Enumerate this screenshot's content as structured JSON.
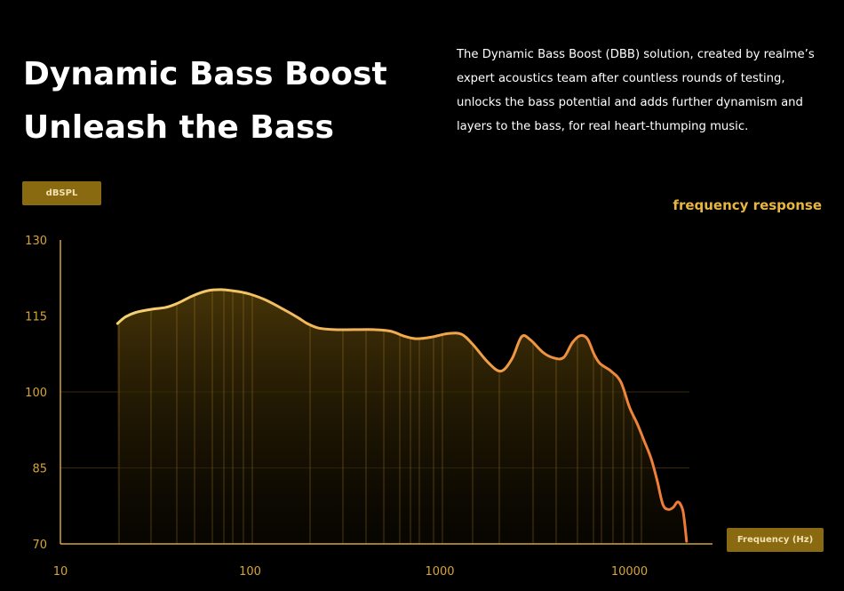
{
  "header": {
    "title_line1": "Dynamic Bass Boost",
    "title_line2": "Unleash the Bass",
    "description": "The Dynamic Bass Boost (DBB) solution, created by realme’s expert acoustics team after countless rounds of testing, unlocks the bass potential and adds further dynamism and layers to the bass, for real heart-thumping music."
  },
  "chart_data": {
    "type": "line",
    "title": "frequency response",
    "ylabel": "dBSPL",
    "xlabel": "Frequency (Hz)",
    "x_scale": "log",
    "xlim": [
      10,
      25000
    ],
    "ylim": [
      70,
      130
    ],
    "x_ticks": [
      10,
      100,
      1000,
      10000
    ],
    "x_tick_labels": [
      "10",
      "100",
      "1000",
      "10000"
    ],
    "y_ticks": [
      70,
      85,
      100,
      115,
      130
    ],
    "y_tick_labels": [
      "70",
      "85",
      "100",
      "115",
      "130"
    ],
    "gridlines_y": [
      85,
      100
    ],
    "fill_under": true,
    "series": [
      {
        "x": [
          20,
          22,
          25,
          30,
          36,
          42,
          50,
          60,
          70,
          80,
          90,
          100,
          120,
          150,
          180,
          200,
          230,
          280,
          350,
          450,
          550,
          650,
          750,
          900,
          1100,
          1300,
          1500,
          1800,
          2100,
          2400,
          2700,
          3000,
          3500,
          4000,
          4500,
          5000,
          5500,
          6000,
          6500,
          7000,
          8000,
          9000,
          10000,
          11000,
          12000,
          13000,
          14000,
          15000,
          16000,
          17000,
          18000,
          19000,
          19500,
          20000
        ],
        "values": [
          113.5,
          114.8,
          115.7,
          116.3,
          116.7,
          117.6,
          119.0,
          120.0,
          120.2,
          120.0,
          119.7,
          119.3,
          118.2,
          116.3,
          114.6,
          113.5,
          112.6,
          112.3,
          112.3,
          112.3,
          112.0,
          111.0,
          110.5,
          110.8,
          111.5,
          111.4,
          109.3,
          105.8,
          104.1,
          106.5,
          110.9,
          110.3,
          107.8,
          106.7,
          106.8,
          109.7,
          111.1,
          110.5,
          107.5,
          105.6,
          104.1,
          102.0,
          97.0,
          93.7,
          90.2,
          86.9,
          82.5,
          77.8,
          76.8,
          77.2,
          78.3,
          77.0,
          74.5,
          70.5
        ]
      }
    ],
    "colors": {
      "curve_start": "#f3d274",
      "curve_end": "#ee7a35",
      "axis": "#d4a33a",
      "vertical_lines": "#c9962a",
      "fill_top": "#4a3708"
    }
  }
}
